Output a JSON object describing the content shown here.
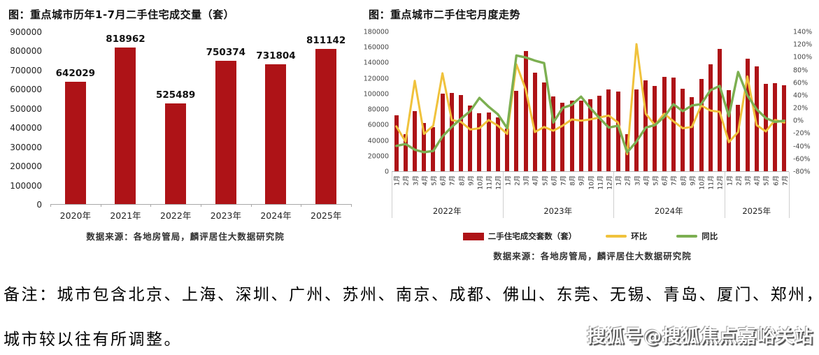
{
  "note": {
    "line1": "备注：城市包含北京、上海、深圳、广州、苏州、南京、成都、佛山、东莞、无锡、青岛、厦门、郑州，",
    "line2": "城市较以往有所调整。"
  },
  "watermark": "搜狐号@搜狐焦点嘉峪关站",
  "colors": {
    "bar_red": "#AE1317",
    "line_yellow": "#F0C23C",
    "line_green": "#7CAF51"
  },
  "chart_data": [
    {
      "type": "bar",
      "title": "图：重点城市历年1-7月二手住宅成交量（套）",
      "categories": [
        "2020年",
        "2021年",
        "2022年",
        "2023年",
        "2024年",
        "2025年"
      ],
      "values": [
        642029,
        818962,
        525489,
        750374,
        731804,
        811142
      ],
      "ylim": [
        0,
        900000
      ],
      "y_tick_labels": [
        "900000",
        "800000",
        "700000",
        "600000",
        "500000",
        "400000",
        "300000",
        "200000",
        "100000",
        "0"
      ],
      "grid": false,
      "legend_position": "none",
      "bar_color": "#AE1317",
      "source": "数据来源：各地房管局，麟评居住大数据研究院"
    },
    {
      "type": "bar+line",
      "title": "图：重点城市二手住宅月度走势",
      "years": [
        {
          "label": "2022年",
          "months": [
            "1月",
            "2月",
            "3月",
            "4月",
            "5月",
            "6月",
            "7月",
            "8月",
            "9月",
            "10月",
            "11月",
            "12月"
          ]
        },
        {
          "label": "2023年",
          "months": [
            "1月",
            "2月",
            "3月",
            "4月",
            "5月",
            "6月",
            "7月",
            "8月",
            "9月",
            "10月",
            "11月",
            "12月"
          ]
        },
        {
          "label": "2024年",
          "months": [
            "1月",
            "2月",
            "3月",
            "4月",
            "5月",
            "6月",
            "7月",
            "8月",
            "9月",
            "10月",
            "11月",
            "12月"
          ]
        },
        {
          "label": "2025年",
          "months": [
            "1月",
            "2月",
            "3月",
            "4月",
            "5月",
            "6月",
            "7月"
          ]
        }
      ],
      "left_axis": {
        "ylim": [
          0,
          180000
        ],
        "tick_labels": [
          "180000",
          "160000",
          "140000",
          "120000",
          "100000",
          "80000",
          "60000",
          "40000",
          "20000",
          "0"
        ]
      },
      "right_axis": {
        "ylim": [
          -80,
          140
        ],
        "unit": "%",
        "tick_labels": [
          "140%",
          "120%",
          "100%",
          "80%",
          "60%",
          "40%",
          "20%",
          "0%",
          "-20%",
          "-40%",
          "-60%",
          "-80%"
        ]
      },
      "grid": false,
      "legend_position": "bottom",
      "series": [
        {
          "name": "二手住宅成交套数（套）",
          "type": "bar",
          "axis": "left",
          "color": "#AE1317",
          "values": [
            72000,
            48000,
            78000,
            62000,
            57000,
            100000,
            101000,
            99000,
            85000,
            75000,
            76000,
            70000,
            55000,
            104000,
            156000,
            128000,
            115000,
            97000,
            89000,
            91000,
            91000,
            93000,
            98000,
            106000,
            103000,
            48000,
            106000,
            118000,
            110000,
            122000,
            121000,
            107000,
            96000,
            119000,
            138000,
            158000,
            105000,
            86000,
            146000,
            136000,
            113000,
            114000,
            111000
          ]
        },
        {
          "name": "环比",
          "type": "line",
          "axis": "right",
          "color": "#F0C23C",
          "values": [
            -9,
            -33,
            63,
            -21,
            -8,
            75,
            1,
            -2,
            -14,
            -12,
            1,
            -8,
            -21,
            89,
            50,
            -18,
            -10,
            -16,
            -8,
            2,
            0,
            2,
            5,
            8,
            -3,
            -53,
            121,
            11,
            -7,
            11,
            -1,
            -12,
            -10,
            24,
            16,
            14,
            -34,
            -18,
            70,
            -7,
            -17,
            1,
            -3
          ]
        },
        {
          "name": "同比",
          "type": "line",
          "axis": "right",
          "color": "#7CAF51",
          "values": [
            -40,
            -37,
            -46,
            -50,
            -48,
            -25,
            -10,
            3,
            15,
            36,
            22,
            10,
            -12,
            103,
            100,
            95,
            91,
            -3,
            20,
            25,
            38,
            20,
            4,
            -11,
            -8,
            -50,
            -33,
            -11,
            -7,
            6,
            26,
            15,
            24,
            26,
            48,
            55,
            7,
            77,
            40,
            18,
            4,
            -2,
            0
          ]
        }
      ],
      "source": "数据来源：各地房管局，麟评居住大数据研究院"
    }
  ]
}
